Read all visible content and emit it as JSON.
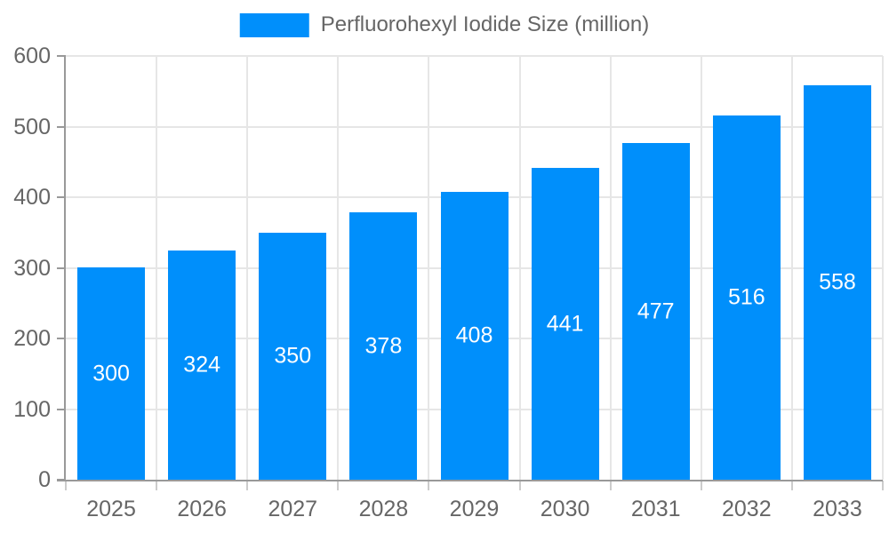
{
  "legend": {
    "label": "Perfluorohexyl Iodide Size (million)"
  },
  "chart_data": {
    "type": "bar",
    "title": "",
    "xlabel": "",
    "ylabel": "",
    "categories": [
      "2025",
      "2026",
      "2027",
      "2028",
      "2029",
      "2030",
      "2031",
      "2032",
      "2033"
    ],
    "series": [
      {
        "name": "Perfluorohexyl Iodide Size (million)",
        "values": [
          300,
          324,
          350,
          378,
          408,
          441,
          477,
          516,
          558
        ]
      }
    ],
    "ylim": [
      0,
      600
    ],
    "yticks": [
      0,
      100,
      200,
      300,
      400,
      500,
      600
    ],
    "grid": "horizontal-and-vertical",
    "legend_position": "top-center",
    "value_labels": "inside-center"
  },
  "colors": {
    "bar": "#008ffb",
    "text_muted": "#666666",
    "axis": "#999999",
    "gridline": "#e6e6e6",
    "tick": "#cccccc",
    "value_label": "#ffffff",
    "background": "#ffffff"
  }
}
